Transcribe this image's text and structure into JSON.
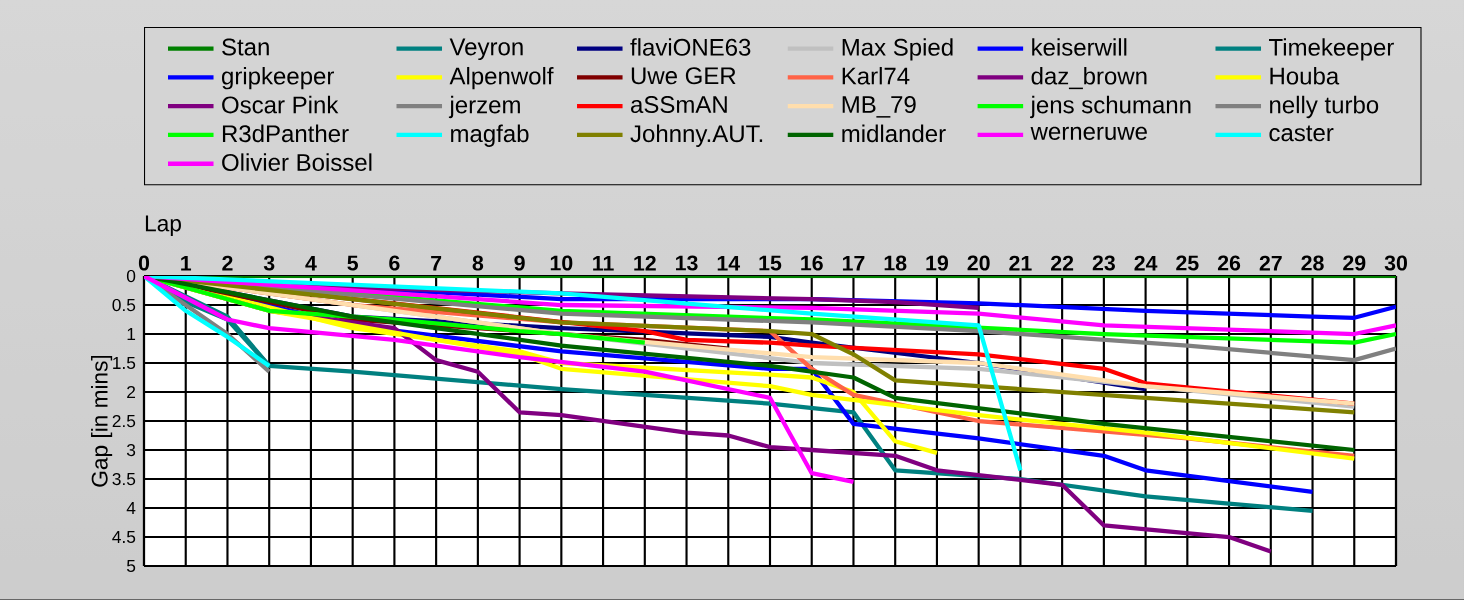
{
  "chart_data": {
    "type": "line",
    "xlabel": "Lap",
    "ylabel": "Gap [in mins]",
    "xlim": [
      0,
      30
    ],
    "xticks": [
      0,
      1,
      2,
      3,
      4,
      5,
      6,
      7,
      8,
      9,
      10,
      11,
      12,
      13,
      14,
      15,
      16,
      17,
      18,
      19,
      20,
      21,
      22,
      23,
      24,
      25,
      26,
      27,
      28,
      29,
      30
    ],
    "ylim": [
      5,
      0
    ],
    "yticks": [
      0,
      0.5,
      1,
      1.5,
      2,
      2.5,
      3,
      3.5,
      4,
      4.5,
      5
    ],
    "grid": true,
    "legend": "top",
    "marker": "none",
    "line_style": "solid",
    "series": [
      {
        "name": "Stan",
        "color": "#008000",
        "x": [
          0,
          30
        ],
        "values": [
          0,
          0
        ]
      },
      {
        "name": "Veyron",
        "color": "#008080",
        "x": [
          0,
          2,
          3,
          5,
          10,
          15,
          17,
          18,
          21,
          24,
          28
        ],
        "values": [
          0,
          0.7,
          1.55,
          1.65,
          1.95,
          2.2,
          2.35,
          3.35,
          3.5,
          3.8,
          4.05
        ]
      },
      {
        "name": "flaviONE63",
        "color": "#000080",
        "x": [
          0,
          5,
          10,
          15,
          16,
          20,
          24
        ],
        "values": [
          0,
          0.7,
          0.9,
          1.05,
          1.15,
          1.5,
          1.95
        ]
      },
      {
        "name": "Max Spied",
        "color": "#c0c0c0",
        "x": [
          0,
          10,
          16,
          20,
          24,
          29
        ],
        "values": [
          0,
          1.0,
          1.5,
          1.6,
          1.9,
          2.25
        ]
      },
      {
        "name": "keiserwill",
        "color": "#0000ff",
        "x": [
          0,
          10,
          16,
          20,
          24,
          28,
          29,
          30
        ],
        "values": [
          0,
          0.4,
          0.4,
          0.47,
          0.6,
          0.7,
          0.72,
          0.53
        ]
      },
      {
        "name": "Timekeeper",
        "color": "#008080",
        "x": [
          0,
          1,
          2,
          3
        ],
        "values": [
          0,
          0.45,
          0.75,
          1.55
        ]
      },
      {
        "name": "gripkeeper",
        "color": "#0000ff",
        "x": [
          0,
          5,
          10,
          15,
          16,
          17,
          20,
          23,
          24,
          28
        ],
        "values": [
          0,
          0.85,
          1.3,
          1.6,
          1.6,
          2.55,
          2.8,
          3.1,
          3.35,
          3.72
        ]
      },
      {
        "name": "Alpenwolf",
        "color": "#ffff00",
        "x": [
          0,
          5,
          9,
          10,
          15,
          16,
          17,
          18,
          19
        ],
        "values": [
          0,
          0.9,
          1.3,
          1.5,
          1.7,
          1.75,
          2.0,
          2.85,
          3.05
        ]
      },
      {
        "name": "Uwe GER",
        "color": "#800000",
        "x": [
          0,
          5,
          8,
          12,
          14
        ],
        "values": [
          0,
          0.75,
          0.9,
          1.1,
          1.25
        ]
      },
      {
        "name": "Karl74",
        "color": "#ff6347",
        "x": [
          0,
          5,
          10,
          15,
          16,
          17,
          20,
          25,
          29
        ],
        "values": [
          0,
          0.5,
          0.8,
          0.95,
          1.6,
          2.05,
          2.5,
          2.8,
          3.1
        ]
      },
      {
        "name": "daz_brown",
        "color": "#800080",
        "x": [
          0,
          3,
          6,
          7,
          8,
          9,
          10,
          13,
          14,
          15,
          16,
          18,
          19,
          22,
          23,
          26,
          27
        ],
        "values": [
          0,
          0.6,
          0.9,
          1.45,
          1.65,
          2.35,
          2.4,
          2.7,
          2.75,
          2.95,
          3.0,
          3.1,
          3.35,
          3.6,
          4.3,
          4.5,
          4.75
        ]
      },
      {
        "name": "Houba",
        "color": "#ffff00",
        "x": [
          0,
          3,
          9,
          10,
          15,
          16,
          20,
          24,
          29
        ],
        "values": [
          0,
          0.6,
          1.35,
          1.6,
          1.9,
          2.05,
          2.4,
          2.7,
          3.15
        ]
      },
      {
        "name": "Oscar Pink",
        "color": "#800080",
        "x": [
          0,
          5,
          10,
          16,
          18,
          20
        ],
        "values": [
          0,
          0.2,
          0.3,
          0.4,
          0.45,
          0.55
        ]
      },
      {
        "name": "jerzem",
        "color": "#808080",
        "x": [
          0,
          1,
          2,
          3
        ],
        "values": [
          0,
          0.5,
          1.0,
          1.65
        ]
      },
      {
        "name": "aSSmAN",
        "color": "#ff0000",
        "x": [
          0,
          12,
          13,
          15,
          16,
          20,
          23,
          24,
          29
        ],
        "values": [
          0,
          0.95,
          1.1,
          1.15,
          1.2,
          1.35,
          1.6,
          1.85,
          2.2
        ]
      },
      {
        "name": "MB_79",
        "color": "#ffdead",
        "x": [
          0,
          10,
          16,
          20,
          24,
          29
        ],
        "values": [
          0,
          1.0,
          1.4,
          1.5,
          1.9,
          2.2
        ]
      },
      {
        "name": "jens schumann",
        "color": "#00ff00",
        "x": [
          0,
          10,
          16,
          23,
          29,
          30
        ],
        "values": [
          0,
          0.6,
          0.75,
          1.0,
          1.15,
          1.0
        ]
      },
      {
        "name": "nelly turbo",
        "color": "#808080",
        "x": [
          0,
          10,
          16,
          20,
          25,
          29,
          30
        ],
        "values": [
          0,
          0.65,
          0.8,
          0.95,
          1.2,
          1.45,
          1.25
        ]
      },
      {
        "name": "R3dPanther",
        "color": "#00ff00",
        "x": [
          0,
          3,
          6,
          9,
          10,
          12
        ],
        "values": [
          0,
          0.6,
          0.75,
          0.95,
          1.0,
          1.15
        ]
      },
      {
        "name": "magfab",
        "color": "#00ffff",
        "x": [
          0,
          1,
          2,
          3
        ],
        "values": [
          0,
          0.6,
          1.05,
          1.55
        ]
      },
      {
        "name": "Johnny.AUT.",
        "color": "#808000",
        "x": [
          0,
          10,
          15,
          16,
          17,
          18,
          24,
          29
        ],
        "values": [
          0,
          0.8,
          0.95,
          1.0,
          1.35,
          1.8,
          2.1,
          2.35
        ]
      },
      {
        "name": "midlander",
        "color": "#006400",
        "x": [
          0,
          5,
          10,
          15,
          17,
          18,
          23,
          29
        ],
        "values": [
          0,
          0.7,
          1.2,
          1.55,
          1.75,
          2.1,
          2.55,
          3.0
        ]
      },
      {
        "name": "werneruwe",
        "color": "#ff00ff",
        "x": [
          0,
          10,
          16,
          20,
          23,
          29,
          30
        ],
        "values": [
          0,
          0.5,
          0.55,
          0.65,
          0.85,
          1.0,
          0.85
        ]
      },
      {
        "name": "caster",
        "color": "#00ffff",
        "x": [
          0,
          10,
          16,
          20,
          21
        ],
        "values": [
          0,
          0.3,
          0.65,
          0.85,
          3.35
        ]
      },
      {
        "name": "Olivier Boissel",
        "color": "#ff00ff",
        "x": [
          0,
          2,
          3,
          6,
          9,
          12,
          15,
          16,
          17
        ],
        "values": [
          0,
          0.75,
          0.9,
          1.1,
          1.4,
          1.65,
          2.1,
          3.4,
          3.55
        ]
      }
    ]
  }
}
